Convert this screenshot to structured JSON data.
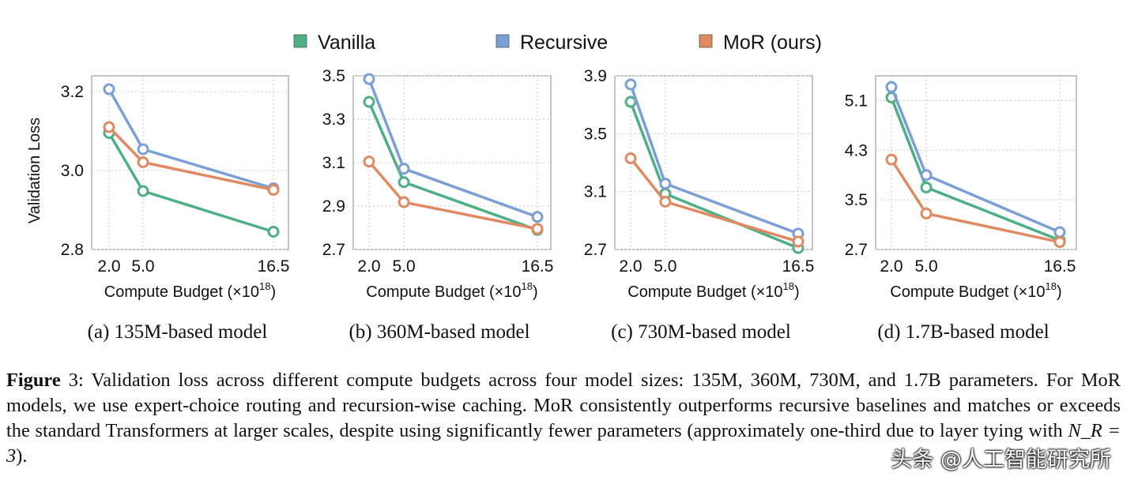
{
  "legend": [
    {
      "label": "Vanilla",
      "color": "#4daf86"
    },
    {
      "label": "Recursive",
      "color": "#7b9fd4"
    },
    {
      "label": "MoR (ours)",
      "color": "#e08a62"
    }
  ],
  "chart_data": [
    {
      "type": "line",
      "subcaption": "(a) 135M-based model",
      "ylabel": "Validation Loss",
      "xlabel_main": "Compute Budget (×10",
      "xlabel_sup": "18",
      "xlabel_end": ")",
      "x": [
        2.0,
        5.0,
        16.5
      ],
      "x_ticks": [
        "2.0",
        "5.0",
        "16.5"
      ],
      "ylim": [
        2.8,
        3.24
      ],
      "y_ticks": [
        2.8,
        3.0,
        3.2
      ],
      "y_tick_labels": [
        "2.8",
        "3.0",
        "3.2"
      ],
      "grid": true,
      "series": [
        {
          "name": "Vanilla",
          "values": [
            3.095,
            2.948,
            2.845
          ]
        },
        {
          "name": "Recursive",
          "values": [
            3.206,
            3.054,
            2.955
          ]
        },
        {
          "name": "MoR (ours)",
          "values": [
            3.11,
            3.021,
            2.951
          ]
        }
      ]
    },
    {
      "type": "line",
      "subcaption": "(b) 360M-based model",
      "ylabel": "",
      "xlabel_main": "Compute Budget (×10",
      "xlabel_sup": "18",
      "xlabel_end": ")",
      "x": [
        2.0,
        5.0,
        16.5
      ],
      "x_ticks": [
        "2.0",
        "5.0",
        "16.5"
      ],
      "ylim": [
        2.7,
        3.5
      ],
      "y_ticks": [
        2.7,
        2.9,
        3.1,
        3.3,
        3.5
      ],
      "y_tick_labels": [
        "2.7",
        "2.9",
        "3.1",
        "3.3",
        "3.5"
      ],
      "grid": true,
      "series": [
        {
          "name": "Vanilla",
          "values": [
            3.38,
            3.01,
            2.79
          ]
        },
        {
          "name": "Recursive",
          "values": [
            3.485,
            3.072,
            2.85
          ]
        },
        {
          "name": "MoR (ours)",
          "values": [
            3.105,
            2.918,
            2.795
          ]
        }
      ]
    },
    {
      "type": "line",
      "subcaption": "(c) 730M-based model",
      "ylabel": "",
      "xlabel_main": "Compute Budget (×10",
      "xlabel_sup": "18",
      "xlabel_end": ")",
      "x": [
        2.0,
        5.0,
        16.5
      ],
      "x_ticks": [
        "2.0",
        "5.0",
        "16.5"
      ],
      "ylim": [
        2.7,
        3.9
      ],
      "y_ticks": [
        2.7,
        3.1,
        3.5,
        3.9
      ],
      "y_tick_labels": [
        "2.7",
        "3.1",
        "3.5",
        "3.9"
      ],
      "grid": true,
      "series": [
        {
          "name": "Vanilla",
          "values": [
            3.72,
            3.085,
            2.71
          ]
        },
        {
          "name": "Recursive",
          "values": [
            3.84,
            3.155,
            2.81
          ]
        },
        {
          "name": "MoR (ours)",
          "values": [
            3.33,
            3.03,
            2.755
          ]
        }
      ]
    },
    {
      "type": "line",
      "subcaption": "(d) 1.7B-based model",
      "ylabel": "",
      "xlabel_main": "Compute Budget (×10",
      "xlabel_sup": "18",
      "xlabel_end": ")",
      "x": [
        2.0,
        5.0,
        16.5
      ],
      "x_ticks": [
        "2.0",
        "5.0",
        "16.5"
      ],
      "ylim": [
        2.7,
        5.5
      ],
      "y_ticks": [
        2.7,
        3.5,
        4.3,
        5.1
      ],
      "y_tick_labels": [
        "2.7",
        "3.5",
        "4.3",
        "5.1"
      ],
      "grid": true,
      "series": [
        {
          "name": "Vanilla",
          "values": [
            5.15,
            3.7,
            2.85
          ]
        },
        {
          "name": "Recursive",
          "values": [
            5.32,
            3.9,
            2.98
          ]
        },
        {
          "name": "MoR (ours)",
          "values": [
            4.15,
            3.28,
            2.82
          ]
        }
      ]
    }
  ],
  "caption": {
    "label": "Figure",
    "number": "3",
    "text_before_math": ": Validation loss across different compute budgets across four model sizes: 135M, 360M, 730M, and 1.7B parameters. For MoR models, we use expert-choice routing and recursion-wise caching. MoR consistently outperforms recursive baselines and matches or exceeds the standard Transformers at larger scales, despite using significantly fewer parameters (approximately one-third due to layer tying with ",
    "math": "N_R = 3",
    "text_after_math": ")."
  },
  "watermark": "头条 @人工智能研究所"
}
